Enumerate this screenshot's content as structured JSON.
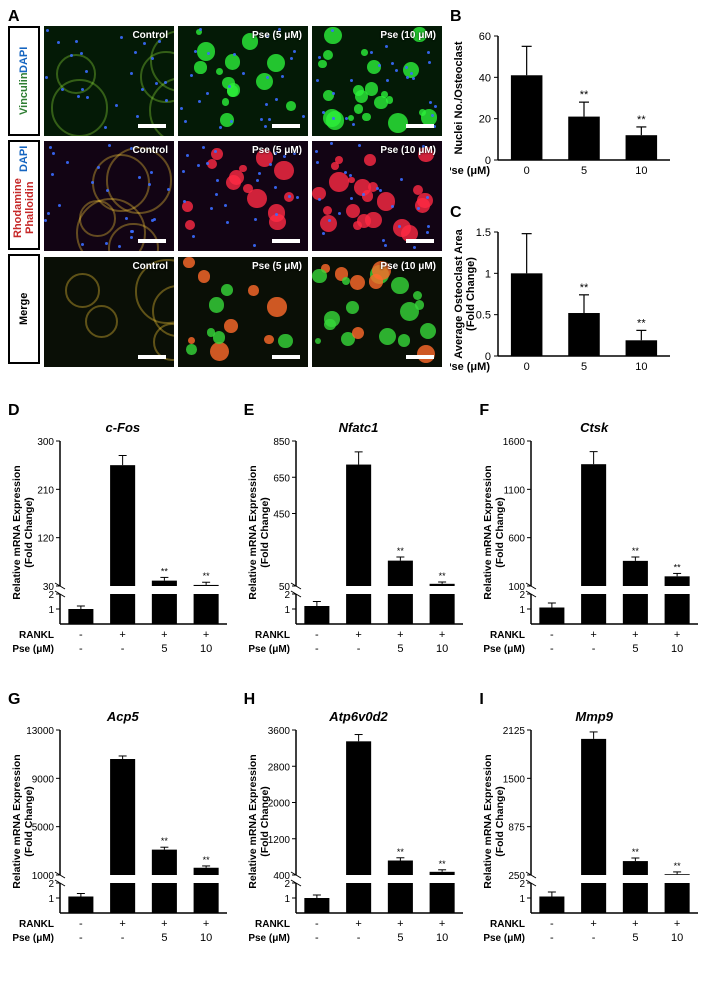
{
  "panelA": {
    "letter": "A",
    "rowLabels": [
      {
        "line1": "Vinculin",
        "color1": "#2e7d32",
        "line2": "DAPI",
        "color2": "#1565c0"
      },
      {
        "line1": "Rhodamine Phalloidin",
        "color1": "#c62828",
        "line2": "DAPI",
        "color2": "#1565c0"
      },
      {
        "line1": "Merge",
        "color1": "#000000",
        "line2": "",
        "color2": ""
      }
    ],
    "columns": [
      "Control",
      "Pse (5 μM)",
      "Pse (10 μM)"
    ],
    "rowStyles": [
      {
        "bg": "#041a06",
        "blobs": "#2cf03a",
        "ring": "#8fe23a"
      },
      {
        "bg": "#120414",
        "blobs": "#ff2a44",
        "ring": "#ffd23a"
      },
      {
        "bg": "#0a0f06",
        "blobs": "#36d83a",
        "ring": "#ffd23a"
      }
    ]
  },
  "panelB": {
    "letter": "B",
    "ylabel": "Nuclei No./Osteoclast",
    "xlabel": "Pse (μM)",
    "xticks": [
      "0",
      "5",
      "10"
    ],
    "ylim": [
      0,
      60
    ],
    "ytick_step": 20,
    "values": [
      41,
      21,
      12
    ],
    "errors": [
      14,
      7,
      4
    ],
    "sig": [
      "",
      "**",
      "**"
    ],
    "bar_color": "#000000"
  },
  "panelC": {
    "letter": "C",
    "ylabel1": "Average Osteoclast Area",
    "ylabel2": "(Fold Change)",
    "xlabel": "Pse (μM)",
    "xticks": [
      "0",
      "5",
      "10"
    ],
    "ylim": [
      0,
      1.5
    ],
    "ytick_step": 0.5,
    "values": [
      1.0,
      0.52,
      0.19
    ],
    "errors": [
      0.48,
      0.22,
      0.12
    ],
    "sig": [
      "",
      "**",
      "**"
    ],
    "bar_color": "#000000"
  },
  "geneCommon": {
    "ylabel1": "Relative mRNA Expression",
    "ylabel2": "(Fold Change)",
    "row1": "RANKL",
    "row2": "Pse (μM)",
    "conds_rankl": [
      "-",
      "+",
      "+",
      "+"
    ],
    "conds_pse": [
      "-",
      "-",
      "5",
      "10"
    ],
    "bar_color": "#000000",
    "low_ylim": [
      0,
      2
    ],
    "low_ticks": [
      1,
      2
    ]
  },
  "panels_genes": [
    {
      "letter": "D",
      "title": "c-Fos",
      "ylim": [
        0,
        300
      ],
      "ticks": [
        30,
        120,
        210,
        300
      ],
      "values": [
        1,
        255,
        40,
        32
      ],
      "errors": [
        0.2,
        18,
        6,
        5
      ],
      "sig": [
        "",
        "",
        "**",
        "**"
      ]
    },
    {
      "letter": "E",
      "title": "Nfatc1",
      "ylim": [
        0,
        850
      ],
      "ticks": [
        50,
        450,
        650,
        850
      ],
      "values": [
        1.2,
        720,
        190,
        62
      ],
      "errors": [
        0.3,
        70,
        20,
        10
      ],
      "sig": [
        "",
        "",
        "**",
        "**"
      ]
    },
    {
      "letter": "F",
      "title": "Ctsk",
      "ylim": [
        0,
        1600
      ],
      "ticks": [
        100,
        600,
        1100,
        1600
      ],
      "values": [
        1.1,
        1360,
        360,
        200
      ],
      "errors": [
        0.3,
        130,
        40,
        30
      ],
      "sig": [
        "",
        "",
        "**",
        "**"
      ]
    },
    {
      "letter": "G",
      "title": "Acp5",
      "ylim": [
        0,
        13000
      ],
      "ticks": [
        1000,
        5000,
        9000,
        13000
      ],
      "values": [
        1.1,
        10600,
        3100,
        1600
      ],
      "errors": [
        0.2,
        250,
        200,
        150
      ],
      "sig": [
        "",
        "",
        "**",
        "**"
      ]
    },
    {
      "letter": "H",
      "title": "Atp6v0d2",
      "ylim": [
        0,
        3600
      ],
      "ticks": [
        400,
        1200,
        2000,
        2800,
        3600
      ],
      "values": [
        1,
        3350,
        720,
        470
      ],
      "errors": [
        0.2,
        150,
        60,
        45
      ],
      "sig": [
        "",
        "",
        "**",
        "**"
      ]
    },
    {
      "letter": "I",
      "title": "Mmp9",
      "ylim": [
        0,
        2125
      ],
      "ticks": [
        250,
        875,
        1500,
        2125
      ],
      "values": [
        1.1,
        2010,
        430,
        260
      ],
      "errors": [
        0.3,
        90,
        40,
        30
      ],
      "sig": [
        "",
        "",
        "**",
        "**"
      ]
    }
  ]
}
